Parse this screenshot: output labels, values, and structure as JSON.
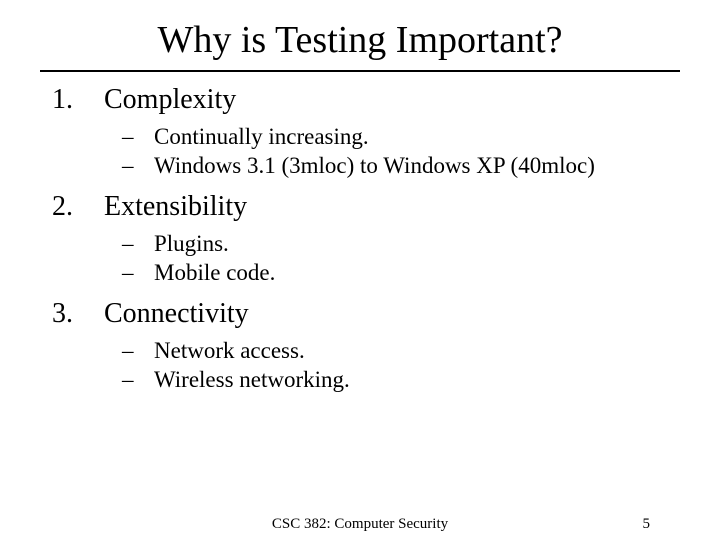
{
  "title": "Why is Testing Important?",
  "items": [
    {
      "num": "1.",
      "label": "Complexity",
      "subs": [
        "Continually increasing.",
        "Windows 3.1 (3mloc) to Windows XP (40mloc)"
      ]
    },
    {
      "num": "2.",
      "label": "Extensibility",
      "subs": [
        "Plugins.",
        "Mobile code."
      ]
    },
    {
      "num": "3.",
      "label": "Connectivity",
      "subs": [
        "Network access.",
        "Wireless networking."
      ]
    }
  ],
  "footer": {
    "course": "CSC 382: Computer Security",
    "page": "5"
  },
  "style": {
    "background_color": "#ffffff",
    "text_color": "#000000",
    "title_fontsize": 38,
    "item_fontsize": 28,
    "sub_fontsize": 23,
    "footer_fontsize": 15,
    "rule_color": "#000000",
    "rule_width": 2.5,
    "font_family": "Times New Roman"
  }
}
